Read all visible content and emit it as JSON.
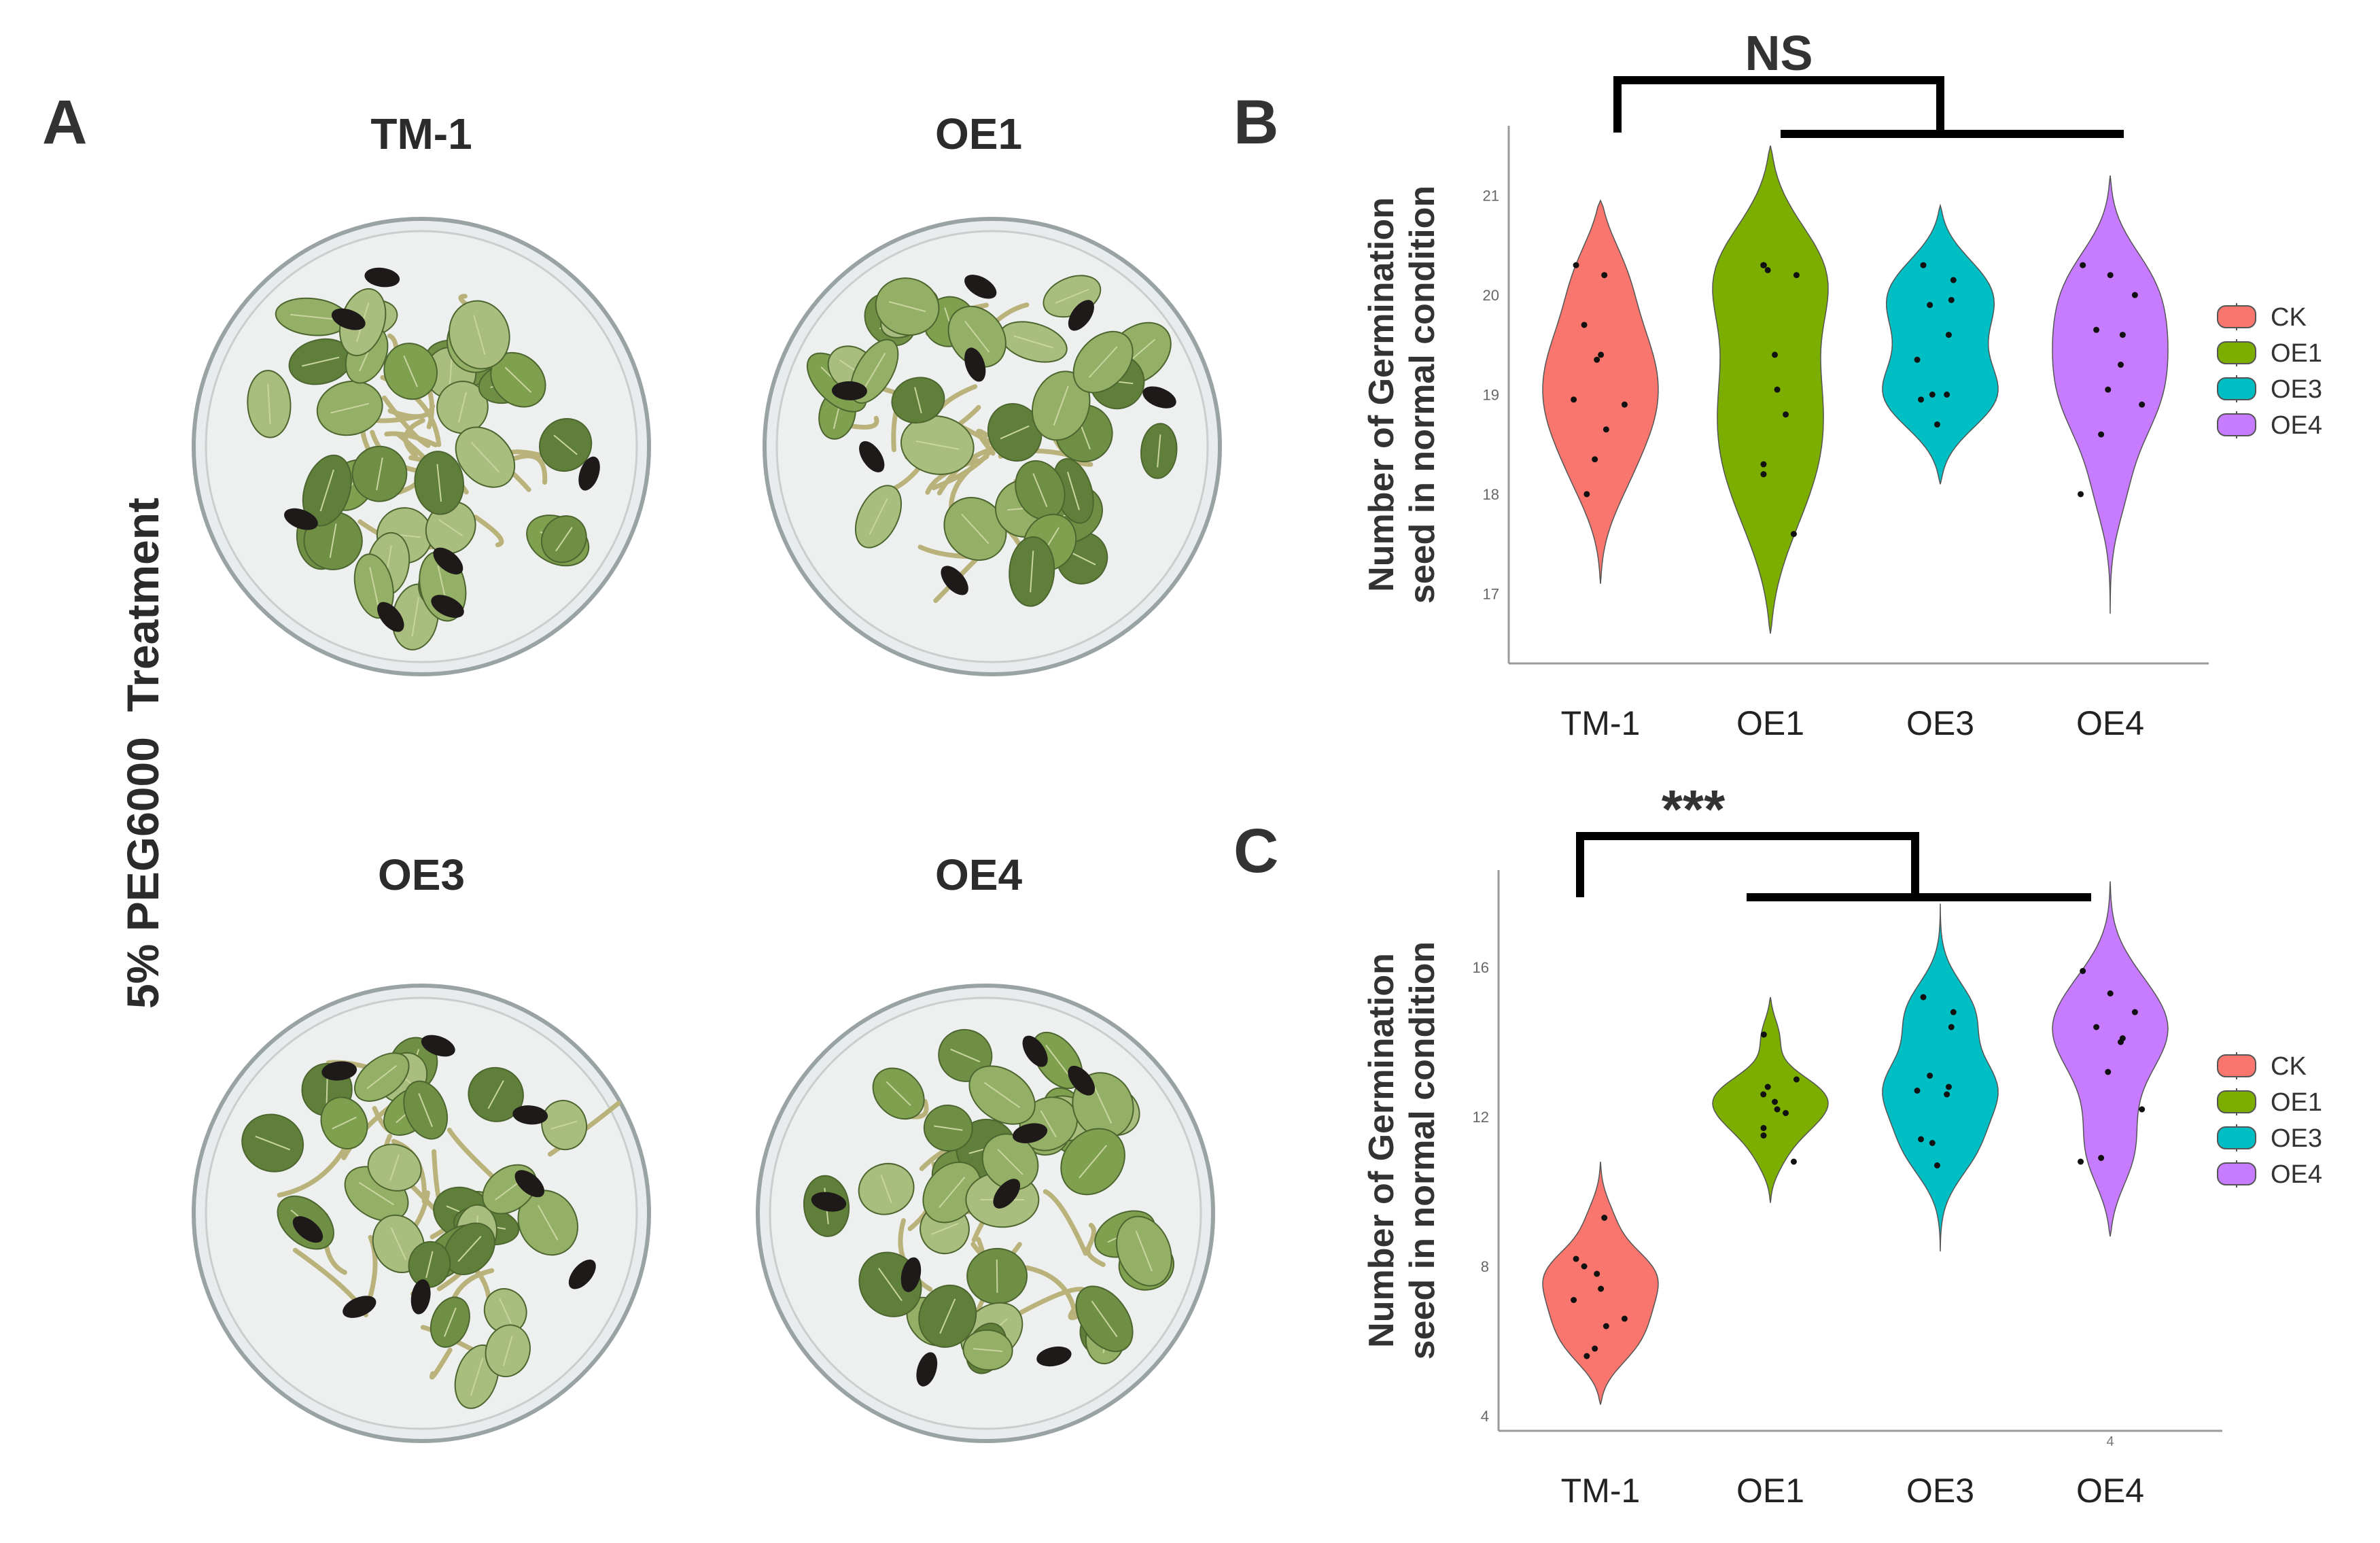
{
  "panel_a": {
    "letter": "A",
    "side_label": "5% PEG6000  Treatment",
    "dishes": [
      {
        "label": "TM-1"
      },
      {
        "label": "OE1"
      },
      {
        "label": "OE3"
      },
      {
        "label": "OE4"
      }
    ]
  },
  "colors": {
    "CK": "#f8766d",
    "OE1": "#7cae00",
    "OE3": "#00bfc4",
    "OE4": "#c77cff"
  },
  "chart_data": [
    {
      "panel": "B",
      "type": "violin",
      "significance": "NS",
      "ylabel": [
        "Number of Germination",
        "seed in normal condition"
      ],
      "categories": [
        "TM-1",
        "OE1",
        "OE3",
        "OE4"
      ],
      "x_tick_labels": [
        "TM-1",
        "OE1",
        "OE3",
        "OE4"
      ],
      "ylim": [
        16.3,
        21.7
      ],
      "yticks": [
        17,
        18,
        19,
        20,
        21
      ],
      "legend": {
        "position": "right",
        "entries": [
          "CK",
          "OE1",
          "OE3",
          "OE4"
        ]
      },
      "series": [
        {
          "name": "CK",
          "min": 17.1,
          "max": 20.95,
          "points": [
            20.2,
            20.3,
            19.7,
            19.35,
            19.4,
            18.95,
            18.9,
            18.65,
            18.35,
            18.0
          ]
        },
        {
          "name": "OE1",
          "min": 16.6,
          "max": 21.5,
          "points": [
            20.3,
            20.2,
            20.25,
            20.3,
            19.4,
            19.05,
            18.8,
            18.3,
            18.2,
            17.6
          ]
        },
        {
          "name": "OE3",
          "min": 18.1,
          "max": 20.9,
          "points": [
            20.3,
            20.15,
            19.95,
            19.9,
            19.6,
            19.35,
            19.0,
            18.95,
            19.0,
            18.7
          ]
        },
        {
          "name": "OE4",
          "min": 16.8,
          "max": 21.2,
          "points": [
            20.3,
            20.2,
            20.0,
            19.65,
            19.6,
            19.3,
            19.05,
            18.9,
            18.6,
            18.0
          ]
        }
      ]
    },
    {
      "panel": "C",
      "type": "violin",
      "significance": "***",
      "ylabel": [
        "Number of Germination",
        "seed in normal condition"
      ],
      "categories": [
        "TM-1",
        "OE1",
        "OE3",
        "OE4"
      ],
      "x_tick_labels": [
        "TM-1",
        "OE1",
        "OE3",
        "OE4"
      ],
      "ylim": [
        3.6,
        18.6
      ],
      "yticks": [
        4,
        8,
        12,
        16
      ],
      "axis_note": "4",
      "legend": {
        "position": "right",
        "entries": [
          "CK",
          "OE1",
          "OE3",
          "OE4"
        ]
      },
      "series": [
        {
          "name": "CK",
          "min": 4.3,
          "max": 10.8,
          "points": [
            9.3,
            8.2,
            8.0,
            7.8,
            7.4,
            7.1,
            6.6,
            6.4,
            5.8,
            5.6
          ]
        },
        {
          "name": "OE1",
          "min": 9.7,
          "max": 15.2,
          "points": [
            14.2,
            13.0,
            12.8,
            12.6,
            12.4,
            12.2,
            12.1,
            11.7,
            11.5,
            10.8
          ]
        },
        {
          "name": "OE3",
          "min": 8.4,
          "max": 17.7,
          "points": [
            15.2,
            14.8,
            14.4,
            13.1,
            12.8,
            12.7,
            12.6,
            11.4,
            11.3,
            10.7
          ]
        },
        {
          "name": "OE4",
          "min": 8.8,
          "max": 18.3,
          "points": [
            15.9,
            15.3,
            14.8,
            14.4,
            14.1,
            14.0,
            13.2,
            12.2,
            10.9,
            10.8
          ]
        }
      ]
    }
  ]
}
